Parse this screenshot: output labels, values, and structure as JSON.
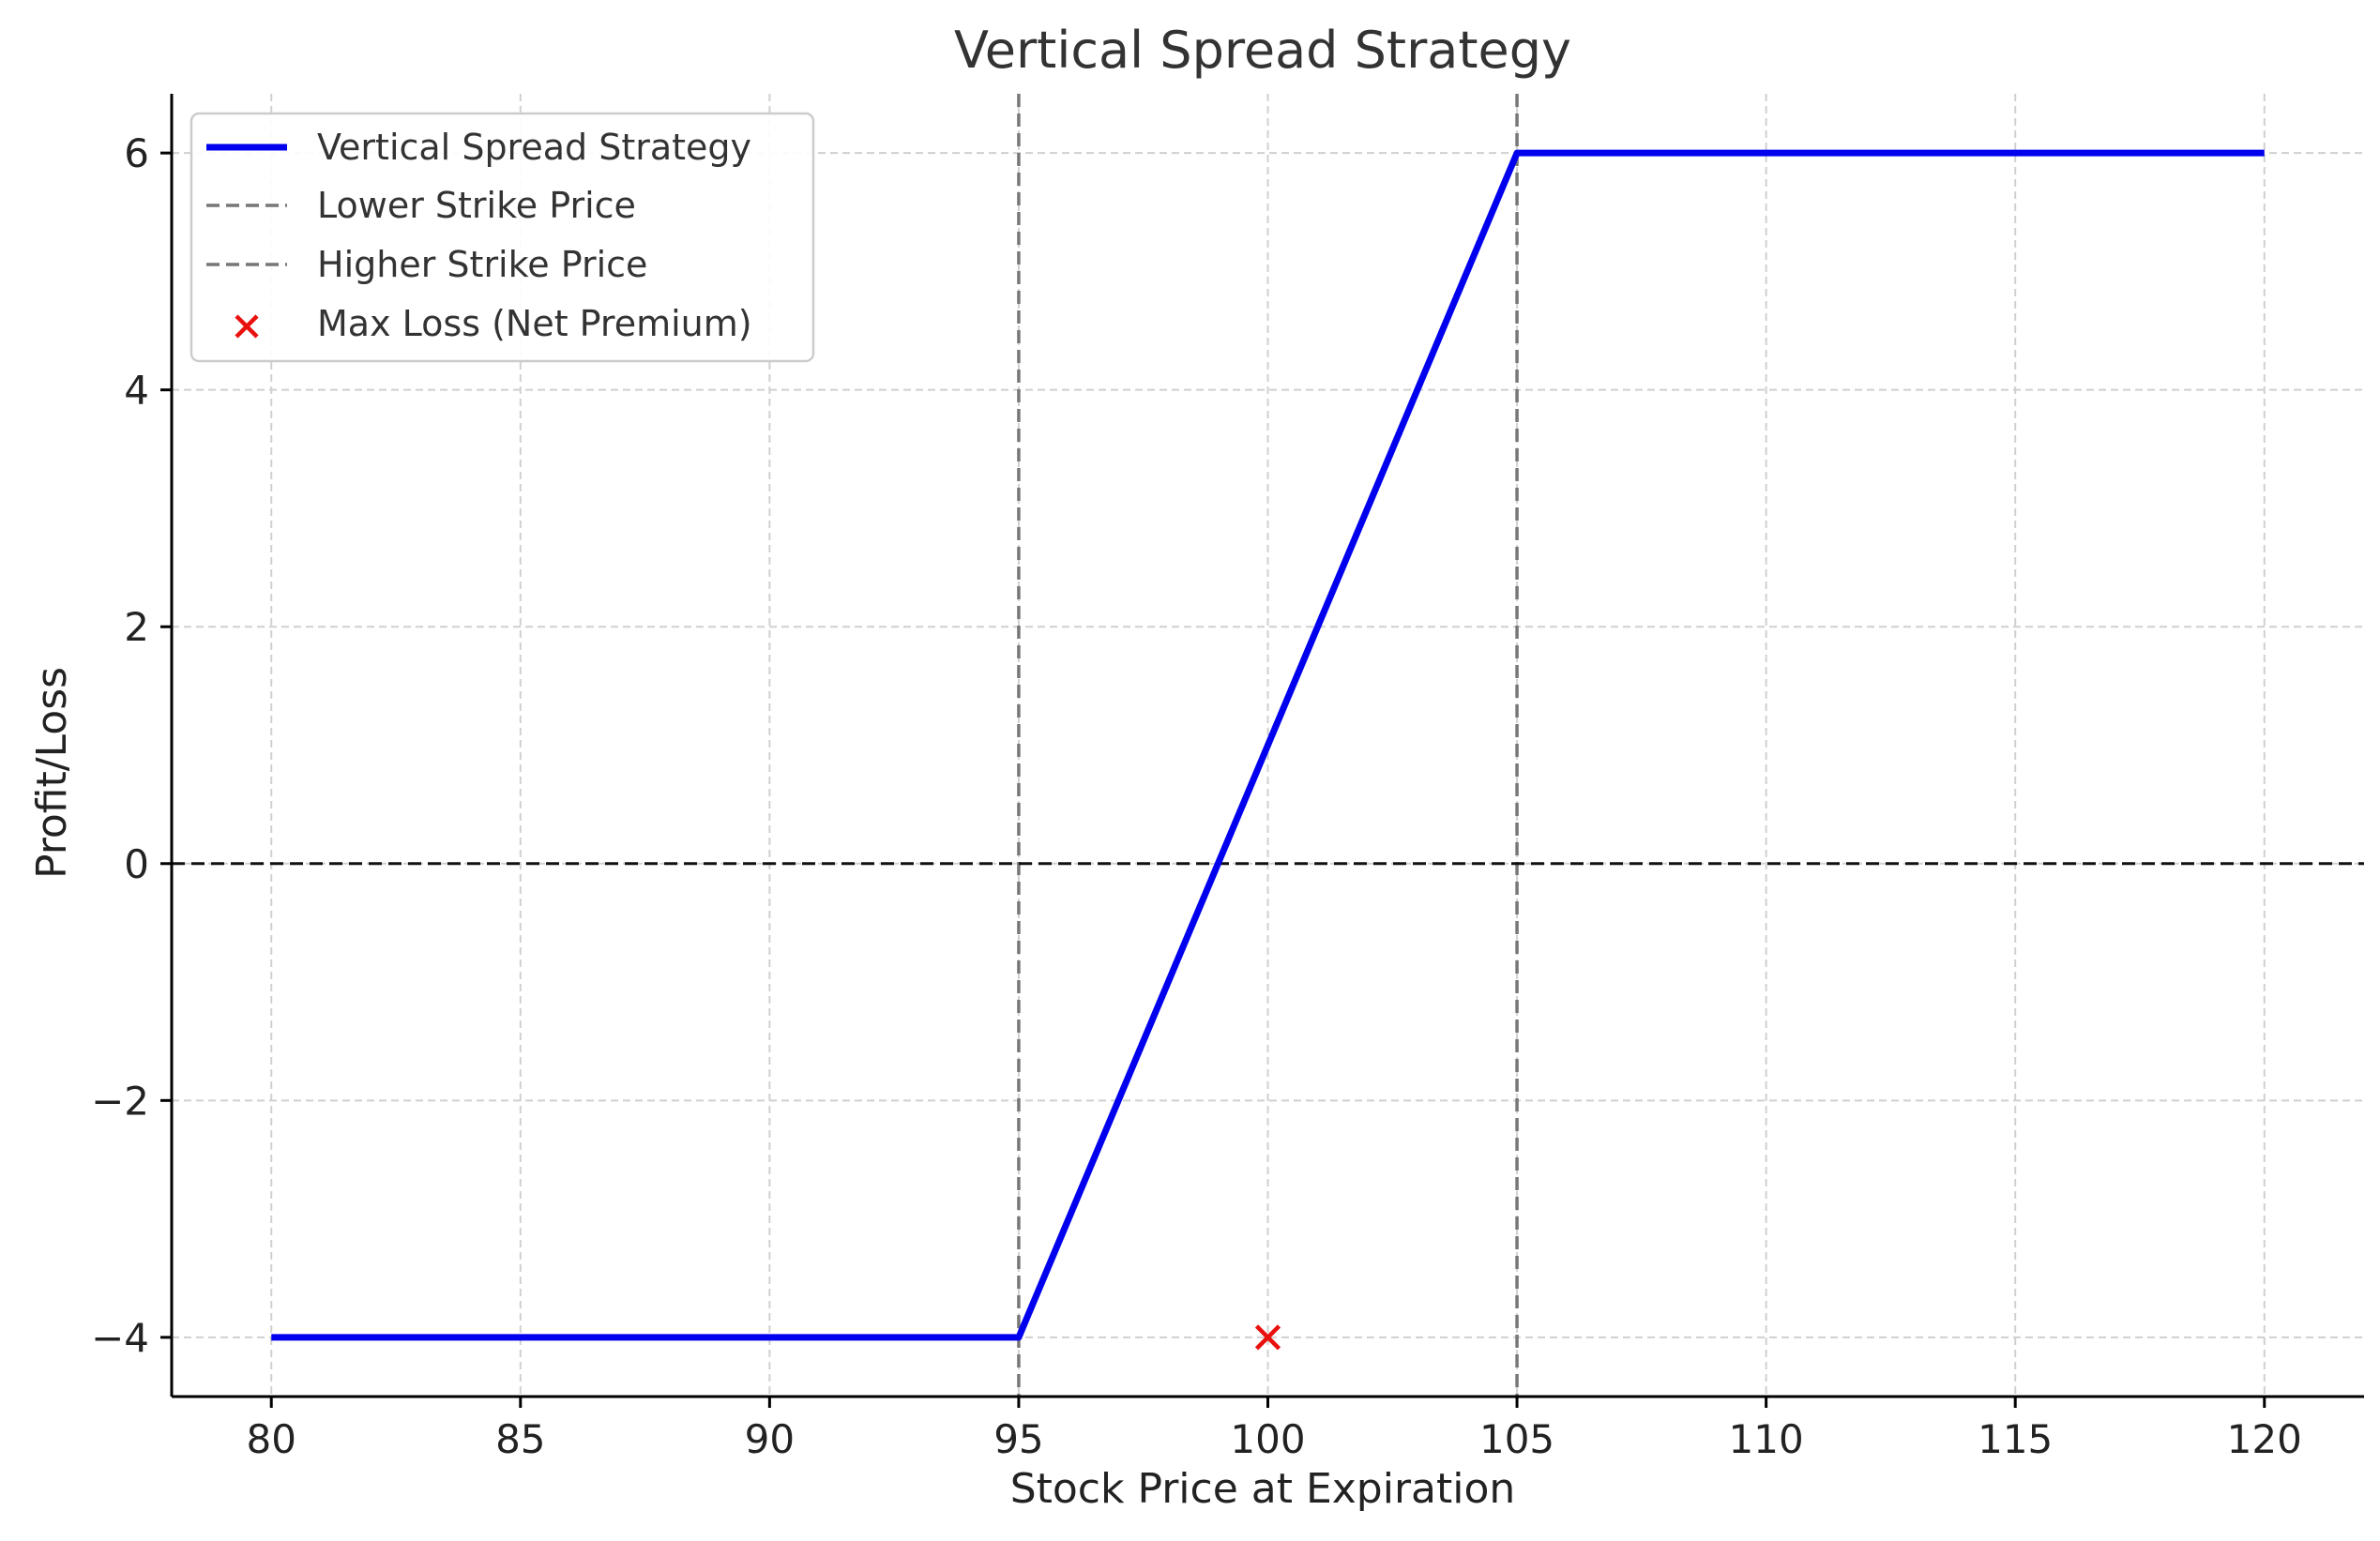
{
  "chart_data": {
    "type": "line",
    "title": "Vertical Spread Strategy",
    "xlabel": "Stock Price at Expiration",
    "ylabel": "Profit/Loss",
    "xlim": [
      78,
      122
    ],
    "ylim": [
      -4.5,
      6.5
    ],
    "xticks": [
      80,
      85,
      90,
      95,
      100,
      105,
      110,
      115,
      120
    ],
    "xtick_labels": [
      "80",
      "85",
      "90",
      "95",
      "100",
      "105",
      "110",
      "115",
      "120"
    ],
    "yticks": [
      -4,
      -2,
      0,
      2,
      4,
      6
    ],
    "ytick_labels": [
      "−4",
      "−2",
      "0",
      "2",
      "4",
      "6"
    ],
    "grid": true,
    "legend_position": "top-left",
    "series": [
      {
        "name": "Vertical Spread Strategy",
        "style": "solid",
        "color": "#0000ee",
        "x": [
          80,
          95,
          105,
          120
        ],
        "y": [
          -4,
          -4,
          6,
          6
        ]
      }
    ],
    "reference_lines": [
      {
        "name": "Lower Strike Price",
        "orientation": "vertical",
        "value": 95,
        "color": "#777777",
        "style": "dashed"
      },
      {
        "name": "Higher Strike Price",
        "orientation": "vertical",
        "value": 105,
        "color": "#777777",
        "style": "dashed"
      },
      {
        "name": "",
        "orientation": "horizontal",
        "value": 0,
        "color": "#111111",
        "style": "dashed"
      }
    ],
    "markers": [
      {
        "name": "Max Loss (Net Premium)",
        "x": 100,
        "y": -4,
        "symbol": "x",
        "color": "#e8110e"
      }
    ],
    "legend": [
      {
        "label": "Vertical Spread Strategy",
        "kind": "line-solid",
        "color": "#0000ee"
      },
      {
        "label": "Lower Strike Price",
        "kind": "line-dashed",
        "color": "#777777"
      },
      {
        "label": "Higher Strike Price",
        "kind": "line-dashed",
        "color": "#777777"
      },
      {
        "label": "Max Loss (Net Premium)",
        "kind": "marker-x",
        "color": "#e8110e"
      }
    ]
  }
}
